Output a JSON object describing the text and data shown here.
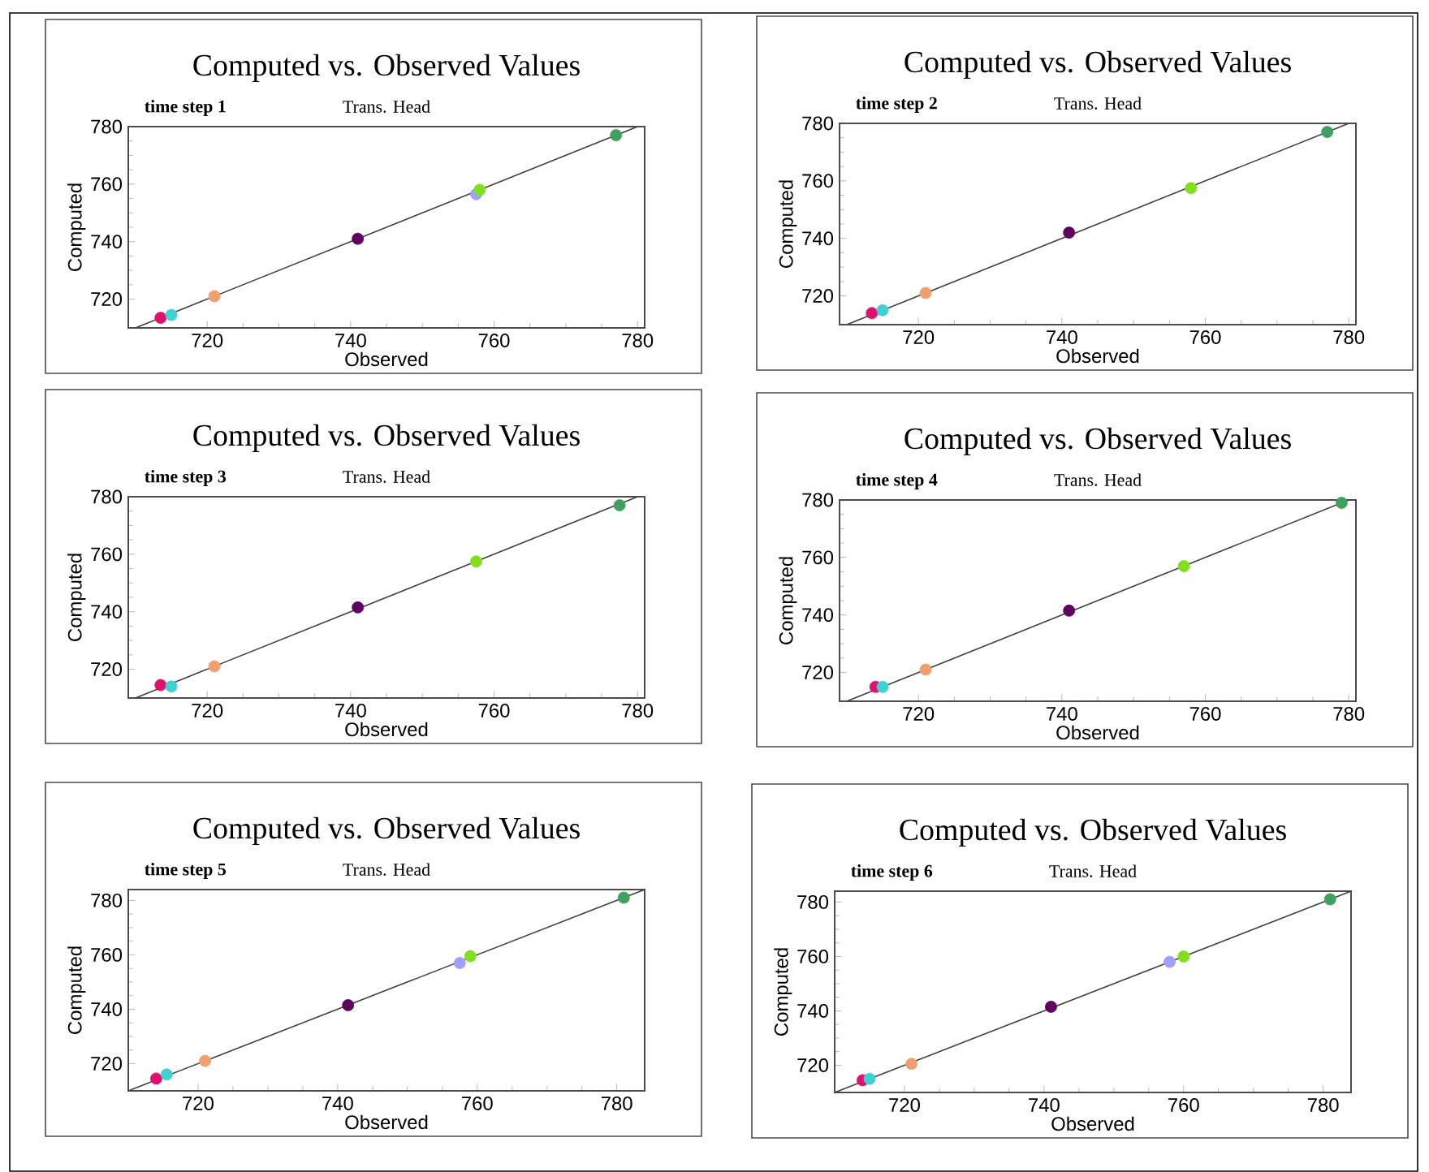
{
  "chart_data": [
    {
      "type": "scatter",
      "title": "Computed vs. Observed Values",
      "subtitle": "Trans. Head",
      "xlabel": "Observed",
      "ylabel": "Computed",
      "annotations": [
        "time step 1"
      ],
      "xlim": [
        709,
        781
      ],
      "ylim": [
        710,
        780
      ],
      "xticks": [
        720,
        740,
        760,
        780
      ],
      "yticks": [
        720,
        740,
        760,
        780
      ],
      "marker": "circle",
      "series": [
        {
          "x": [
            713.5,
            715,
            721,
            741,
            757.5,
            758,
            777
          ],
          "values": [
            713.5,
            714.5,
            721,
            741,
            756.5,
            758,
            777
          ],
          "colors": [
            "#e0106e",
            "#40d0d0",
            "#f0a070",
            "#600060",
            "#a0a0ff",
            "#80e020",
            "#40a060"
          ]
        },
        {
          "type": "line",
          "marker": "none",
          "x": [
            710,
            780
          ],
          "values": [
            710,
            780
          ],
          "color": "#404040"
        }
      ]
    },
    {
      "type": "scatter",
      "title": "Computed vs. Observed Values",
      "subtitle": "Trans. Head",
      "xlabel": "Observed",
      "ylabel": "Computed",
      "annotations": [
        "time step 2"
      ],
      "xlim": [
        709,
        781
      ],
      "ylim": [
        710,
        780
      ],
      "xticks": [
        720,
        740,
        760,
        780
      ],
      "yticks": [
        720,
        740,
        760,
        780
      ],
      "marker": "circle",
      "series": [
        {
          "x": [
            713.5,
            715,
            721,
            741,
            758,
            777
          ],
          "values": [
            714,
            715,
            721,
            742,
            757.5,
            777
          ],
          "colors": [
            "#e0106e",
            "#40d0d0",
            "#f0a070",
            "#600060",
            "#80e020",
            "#40a060"
          ]
        },
        {
          "type": "line",
          "marker": "none",
          "x": [
            710,
            780
          ],
          "values": [
            710,
            780
          ],
          "color": "#404040"
        }
      ]
    },
    {
      "type": "scatter",
      "title": "Computed vs. Observed Values",
      "subtitle": "Trans. Head",
      "xlabel": "Observed",
      "ylabel": "Computed",
      "annotations": [
        "time step 3"
      ],
      "xlim": [
        709,
        781
      ],
      "ylim": [
        710,
        780
      ],
      "xticks": [
        720,
        740,
        760,
        780
      ],
      "yticks": [
        720,
        740,
        760,
        780
      ],
      "marker": "circle",
      "series": [
        {
          "x": [
            713.5,
            715,
            721,
            741,
            757.5,
            777.5
          ],
          "values": [
            714.5,
            714,
            721,
            741.5,
            757.5,
            777
          ],
          "colors": [
            "#e0106e",
            "#40d0d0",
            "#f0a070",
            "#600060",
            "#80e020",
            "#40a060"
          ]
        },
        {
          "type": "line",
          "marker": "none",
          "x": [
            710,
            780
          ],
          "values": [
            710,
            780
          ],
          "color": "#404040"
        }
      ]
    },
    {
      "type": "scatter",
      "title": "Computed vs. Observed Values",
      "subtitle": "Trans. Head",
      "xlabel": "Observed",
      "ylabel": "Computed",
      "annotations": [
        "time step 4"
      ],
      "xlim": [
        709,
        781
      ],
      "ylim": [
        710,
        780
      ],
      "xticks": [
        720,
        740,
        760,
        780
      ],
      "yticks": [
        720,
        740,
        760,
        780
      ],
      "marker": "circle",
      "series": [
        {
          "x": [
            714,
            715,
            721,
            741,
            757,
            779
          ],
          "values": [
            715,
            715,
            721,
            741.5,
            757,
            779
          ],
          "colors": [
            "#e0106e",
            "#40d0d0",
            "#f0a070",
            "#600060",
            "#80e020",
            "#40a060"
          ]
        },
        {
          "type": "line",
          "marker": "none",
          "x": [
            710,
            780
          ],
          "values": [
            710,
            780
          ],
          "color": "#404040"
        }
      ]
    },
    {
      "type": "scatter",
      "title": "Computed vs. Observed Values",
      "subtitle": "Trans. Head",
      "xlabel": "Observed",
      "ylabel": "Computed",
      "annotations": [
        "time step 5"
      ],
      "xlim": [
        710,
        784
      ],
      "ylim": [
        710,
        784
      ],
      "xticks": [
        720,
        740,
        760,
        780
      ],
      "yticks": [
        720,
        740,
        760,
        780
      ],
      "marker": "circle",
      "series": [
        {
          "x": [
            714,
            715.5,
            721,
            741.5,
            757.5,
            759,
            781
          ],
          "values": [
            714.5,
            716,
            721,
            741.5,
            757,
            759.5,
            781
          ],
          "colors": [
            "#e0106e",
            "#40d0d0",
            "#f0a070",
            "#600060",
            "#a0a0ff",
            "#80e020",
            "#40a060"
          ]
        },
        {
          "type": "line",
          "marker": "none",
          "x": [
            710,
            784
          ],
          "values": [
            710,
            784
          ],
          "color": "#404040"
        }
      ]
    },
    {
      "type": "scatter",
      "title": "Computed vs. Observed Values",
      "subtitle": "Trans. Head",
      "xlabel": "Observed",
      "ylabel": "Computed",
      "annotations": [
        "time step 6"
      ],
      "xlim": [
        710,
        784
      ],
      "ylim": [
        710,
        784
      ],
      "xticks": [
        720,
        740,
        760,
        780
      ],
      "yticks": [
        720,
        740,
        760,
        780
      ],
      "marker": "circle",
      "series": [
        {
          "x": [
            714,
            715,
            721,
            741,
            758,
            760,
            781
          ],
          "values": [
            714.5,
            715,
            720.5,
            741.5,
            758,
            760,
            781
          ],
          "colors": [
            "#e0106e",
            "#40d0d0",
            "#f0a070",
            "#600060",
            "#a0a0ff",
            "#80e020",
            "#40a060"
          ]
        },
        {
          "type": "line",
          "marker": "none",
          "x": [
            710,
            784
          ],
          "values": [
            710,
            784
          ],
          "color": "#404040"
        }
      ]
    }
  ]
}
